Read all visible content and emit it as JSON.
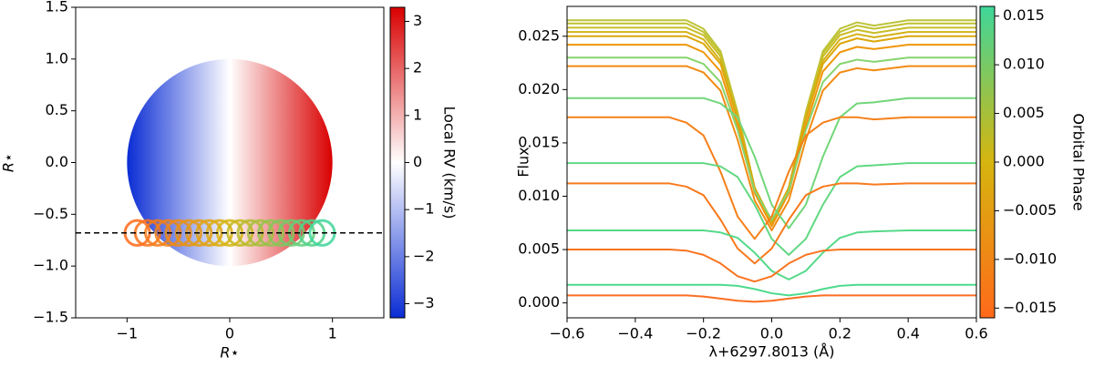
{
  "chart_data": [
    {
      "type": "transit",
      "xlabel": "R⋆",
      "ylabel": "R⋆",
      "xlim": [
        -1.5,
        1.5
      ],
      "ylim": [
        -1.5,
        1.5
      ],
      "xticks": [
        {
          "value": -1,
          "label": "−1"
        },
        0,
        1
      ],
      "yticks": [
        {
          "value": -1.5,
          "label": "−1.5"
        },
        {
          "value": -1,
          "label": "−1.0"
        },
        {
          "value": -0.5,
          "label": "−0.5"
        },
        {
          "value": 0,
          "label": "0.0"
        },
        0.5,
        {
          "value": 1,
          "label": "1.0"
        },
        1.5
      ],
      "disk_radius": 1,
      "chord_y": -0.68,
      "planet_radius": 0.12,
      "x": [
        -0.9,
        -0.8,
        -0.7,
        -0.6,
        -0.5,
        -0.4,
        -0.3,
        -0.2,
        -0.1,
        0,
        0.1,
        0.2,
        0.3,
        0.4,
        0.5,
        0.6,
        0.7,
        0.8,
        0.9
      ],
      "y": [
        -0.68,
        -0.68,
        -0.68,
        -0.68,
        -0.68,
        -0.68,
        -0.68,
        -0.68,
        -0.68,
        -0.68,
        -0.68,
        -0.68,
        -0.68,
        -0.68,
        -0.68,
        -0.68,
        -0.68,
        -0.68,
        -0.68
      ],
      "planet_colors": [
        "#ff6a1a",
        "#d6b50f",
        "#3fd69a"
      ],
      "colorbar": {
        "label": "Local RV (km/s)",
        "lim": [
          -3.3,
          3.3
        ],
        "ticks": [
          {
            "value": -3,
            "label": "−3"
          },
          {
            "value": -2,
            "label": "−2"
          },
          {
            "value": -1,
            "label": "−1"
          },
          0,
          1,
          2,
          3
        ],
        "colors": [
          "#0a2cd4",
          "#ffffff",
          "#d90000"
        ]
      }
    },
    {
      "type": "line",
      "xlabel": "λ+6297.8013 (Å)",
      "ylabel": "Flux",
      "xlim": [
        -0.6,
        0.6
      ],
      "ylim": [
        -0.0014,
        0.0278
      ],
      "xticks": [
        {
          "value": -0.6,
          "label": "−0.6"
        },
        {
          "value": -0.4,
          "label": "−0.4"
        },
        {
          "value": -0.2,
          "label": "−0.2"
        },
        {
          "value": 0,
          "label": "0.0"
        },
        0.2,
        0.4,
        0.6
      ],
      "yticks": [
        {
          "value": 0,
          "label": "0.000"
        },
        {
          "value": 0.005,
          "label": "0.005"
        },
        {
          "value": 0.01,
          "label": "0.010"
        },
        {
          "value": 0.015,
          "label": "0.015"
        },
        {
          "value": 0.02,
          "label": "0.020"
        },
        {
          "value": 0.025,
          "label": "0.025"
        }
      ],
      "x": [
        -0.6,
        -0.5,
        -0.4,
        -0.3,
        -0.25,
        -0.2,
        -0.15,
        -0.1,
        -0.05,
        0,
        0.05,
        0.1,
        0.15,
        0.2,
        0.25,
        0.3,
        0.4,
        0.5,
        0.6
      ],
      "series": [
        {
          "color": "#bcc43a",
          "values": [
            0.0265,
            0.0265,
            0.0265,
            0.0265,
            0.0265,
            0.0257,
            0.0236,
            0.0179,
            0.0108,
            0.0073,
            0.0108,
            0.0179,
            0.0236,
            0.0257,
            0.0263,
            0.026,
            0.0265,
            0.0265,
            0.0265
          ]
        },
        {
          "color": "#c2c232",
          "values": [
            0.0262,
            0.0262,
            0.0262,
            0.0262,
            0.0262,
            0.0254,
            0.0234,
            0.0177,
            0.0108,
            0.0074,
            0.0108,
            0.0177,
            0.0234,
            0.0254,
            0.026,
            0.0257,
            0.0262,
            0.0262,
            0.0262
          ]
        },
        {
          "color": "#c8bd28",
          "values": [
            0.0258,
            0.0258,
            0.0258,
            0.0258,
            0.0258,
            0.0251,
            0.0231,
            0.0176,
            0.0108,
            0.0075,
            0.0108,
            0.0176,
            0.0231,
            0.0251,
            0.0256,
            0.0253,
            0.0258,
            0.0258,
            0.0258
          ]
        },
        {
          "color": "#d4b216",
          "values": [
            0.0254,
            0.0254,
            0.0254,
            0.0254,
            0.0254,
            0.0247,
            0.0227,
            0.0174,
            0.0108,
            0.0076,
            0.0108,
            0.0174,
            0.0227,
            0.0247,
            0.0252,
            0.0249,
            0.0254,
            0.0254,
            0.0254
          ]
        },
        {
          "color": "#dca70a",
          "values": [
            0.025,
            0.025,
            0.025,
            0.025,
            0.025,
            0.0243,
            0.0224,
            0.0172,
            0.0108,
            0.0077,
            0.0108,
            0.0172,
            0.0224,
            0.0243,
            0.0248,
            0.0245,
            0.025,
            0.025,
            0.025
          ]
        },
        {
          "color": "#f0960a",
          "values": [
            0.0242,
            0.0242,
            0.0242,
            0.0242,
            0.0242,
            0.0235,
            0.0217,
            0.0166,
            0.0103,
            0.0072,
            0.0103,
            0.0166,
            0.0217,
            0.0235,
            0.024,
            0.0238,
            0.0242,
            0.0242,
            0.0242
          ]
        },
        {
          "color": "#86d46e",
          "values": [
            0.023,
            0.023,
            0.023,
            0.023,
            0.023,
            0.0224,
            0.0207,
            0.0162,
            0.0105,
            0.0078,
            0.0105,
            0.0162,
            0.0207,
            0.0224,
            0.0228,
            0.0226,
            0.023,
            0.023,
            0.023
          ]
        },
        {
          "color": "#f28a12",
          "values": [
            0.0222,
            0.0222,
            0.0222,
            0.0222,
            0.0222,
            0.0216,
            0.0199,
            0.0153,
            0.0096,
            0.0068,
            0.0096,
            0.0153,
            0.0199,
            0.0216,
            0.022,
            0.0218,
            0.0222,
            0.0222,
            0.0222
          ]
        },
        {
          "color": "#72d67a",
          "values": [
            0.0192,
            0.0192,
            0.0192,
            0.0192,
            0.0192,
            0.0192,
            0.0187,
            0.0174,
            0.0137,
            0.0092,
            0.007,
            0.0092,
            0.0137,
            0.0174,
            0.0187,
            0.0188,
            0.0192,
            0.0192,
            0.0192
          ]
        },
        {
          "color": "#f5801a",
          "values": [
            0.0174,
            0.0174,
            0.0174,
            0.0174,
            0.0169,
            0.0157,
            0.0123,
            0.0081,
            0.006,
            0.0081,
            0.0123,
            0.0157,
            0.0169,
            0.0174,
            0.0174,
            0.0172,
            0.0174,
            0.0174,
            0.0174
          ]
        },
        {
          "color": "#62d882",
          "values": [
            0.0131,
            0.0131,
            0.0131,
            0.0131,
            0.0131,
            0.0131,
            0.0128,
            0.0118,
            0.0092,
            0.006,
            0.0045,
            0.006,
            0.0092,
            0.0118,
            0.0128,
            0.0129,
            0.0131,
            0.0131,
            0.0131
          ]
        },
        {
          "color": "#f77a1d",
          "values": [
            0.0112,
            0.0112,
            0.0112,
            0.0112,
            0.0109,
            0.0101,
            0.0078,
            0.0051,
            0.0037,
            0.0051,
            0.0078,
            0.0101,
            0.0109,
            0.0112,
            0.0112,
            0.0111,
            0.0112,
            0.0112,
            0.0112
          ]
        },
        {
          "color": "#55d98a",
          "values": [
            0.0068,
            0.0068,
            0.0068,
            0.0068,
            0.0068,
            0.0068,
            0.0066,
            0.0061,
            0.0047,
            0.003,
            0.0022,
            0.003,
            0.0047,
            0.0061,
            0.0066,
            0.0067,
            0.0068,
            0.0068,
            0.0068
          ]
        },
        {
          "color": "#f97420",
          "values": [
            0.005,
            0.005,
            0.005,
            0.005,
            0.0049,
            0.0045,
            0.0037,
            0.0025,
            0.002,
            0.0025,
            0.0037,
            0.0045,
            0.0049,
            0.005,
            0.005,
            0.005,
            0.005,
            0.005,
            0.005
          ]
        },
        {
          "color": "#4dda8e",
          "values": [
            0.0017,
            0.0017,
            0.0017,
            0.0017,
            0.0017,
            0.0017,
            0.0017,
            0.0016,
            0.0013,
            0.0009,
            0.0007,
            0.0009,
            0.0013,
            0.0016,
            0.0017,
            0.0017,
            0.0017,
            0.0017,
            0.0017
          ]
        },
        {
          "color": "#fb6e22",
          "values": [
            0.0007,
            0.0007,
            0.0007,
            0.0007,
            0.0007,
            0.0006,
            0.0004,
            0.0002,
            0.0001,
            0.0002,
            0.0004,
            0.0006,
            0.0007,
            0.0007,
            0.0007,
            0.0007,
            0.0007,
            0.0007,
            0.0007
          ]
        }
      ],
      "colorbar": {
        "label": "Orbital Phase",
        "lim": [
          -0.016,
          0.016
        ],
        "ticks": [
          {
            "value": -0.015,
            "label": "−0.015"
          },
          {
            "value": -0.01,
            "label": "−0.010"
          },
          {
            "value": -0.005,
            "label": "−0.005"
          },
          {
            "value": 0,
            "label": "0.000"
          },
          {
            "value": 0.005,
            "label": "0.005"
          },
          {
            "value": 0.01,
            "label": "0.010"
          },
          0.015
        ],
        "colors": [
          "#ff6a1a",
          "#d6b50f",
          "#3fd69a"
        ]
      }
    }
  ]
}
